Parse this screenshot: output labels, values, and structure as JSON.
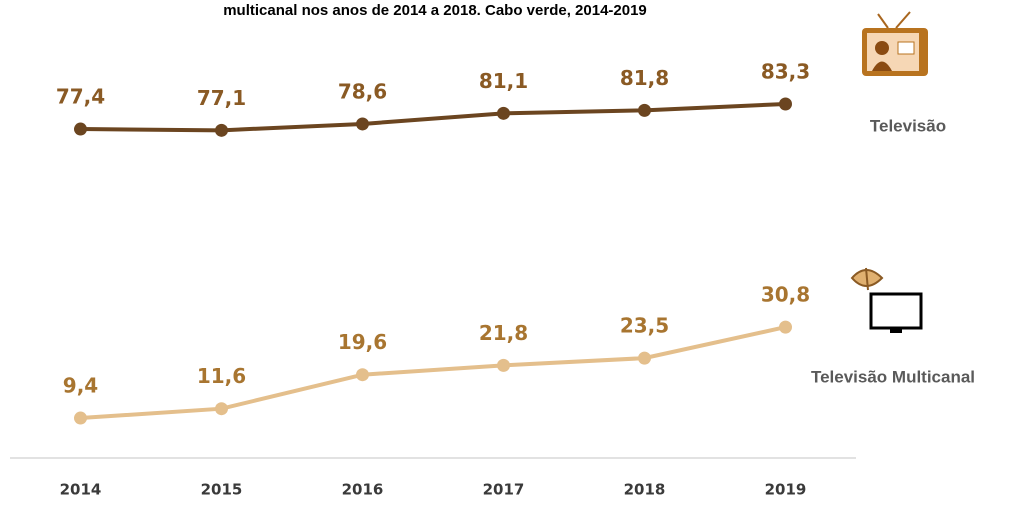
{
  "chart_data": {
    "type": "line",
    "title": "multicanal nos anos de 2014 a 2018. Cabo verde, 2014-2019",
    "categories": [
      "2014",
      "2015",
      "2016",
      "2017",
      "2018",
      "2019"
    ],
    "series": [
      {
        "name": "Televisão",
        "color": "#6b4520",
        "values": [
          77.4,
          77.1,
          78.6,
          81.1,
          81.8,
          83.3
        ],
        "value_labels": [
          "77,4",
          "77,1",
          "78,6",
          "81,1",
          "81,8",
          "83,3"
        ]
      },
      {
        "name": "Televisão Multicanal",
        "color": "#e4bf8c",
        "values": [
          9.4,
          11.6,
          19.6,
          21.8,
          23.5,
          30.8
        ],
        "value_labels": [
          "9,4",
          "11,6",
          "19,6",
          "21,8",
          "23,5",
          "30,8"
        ]
      }
    ],
    "ylim": [
      0,
      100
    ]
  }
}
